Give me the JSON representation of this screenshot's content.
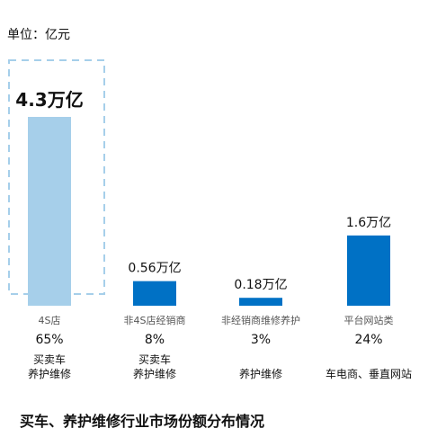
{
  "unit_label": "单位：亿元",
  "caption": "买车、养护维修行业市场份额分布情况",
  "colors": {
    "highlight_bar": "#a6cfea",
    "bar": "#0071c5",
    "dash_box": "#a6cfea",
    "category_text": "#555555"
  },
  "chart_data": {
    "type": "bar",
    "title": "",
    "ylabel": "",
    "xlabel": "",
    "ylim": [
      0,
      4.3
    ],
    "categories": [
      "4S店",
      "非4S店经销商",
      "非经销商维修养护",
      "平台网站类"
    ],
    "values": [
      4.3,
      0.56,
      0.18,
      1.6
    ],
    "value_labels": [
      "4.3万亿",
      "0.56万亿",
      "0.18万亿",
      "1.6万亿"
    ],
    "percentages": [
      "65%",
      "8%",
      "3%",
      "24%"
    ],
    "segments": [
      [
        "买卖车",
        "养护维修"
      ],
      [
        "买卖车",
        "养护维修"
      ],
      [
        "养护维修"
      ],
      [
        "车电商、垂直网站"
      ]
    ],
    "highlight_index": 0,
    "grid": false,
    "legend": "none"
  }
}
